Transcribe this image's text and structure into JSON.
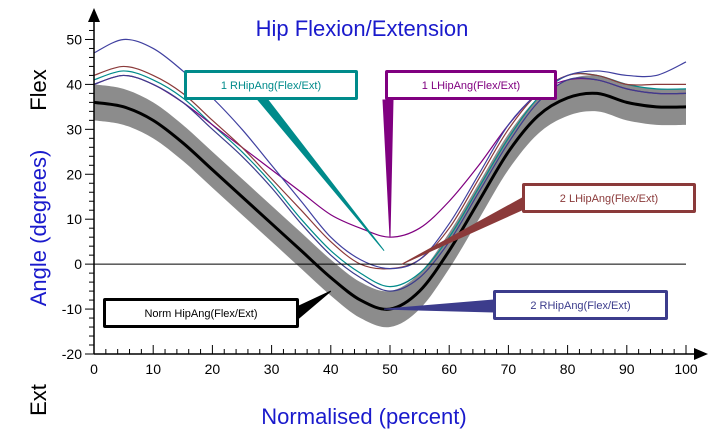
{
  "chart_data": {
    "type": "line",
    "title": "Hip Flexion/Extension",
    "xlabel": "Normalised (percent)",
    "ylabel": "Angle (degrees)",
    "ylabel_top": "Flex",
    "ylabel_bottom": "Ext",
    "xlim": [
      0,
      100
    ],
    "ylim": [
      -20,
      55
    ],
    "xticks": [
      0,
      10,
      20,
      30,
      40,
      50,
      60,
      70,
      80,
      90,
      100
    ],
    "yticks": [
      -20,
      -10,
      0,
      10,
      20,
      30,
      40,
      50
    ],
    "grid": false,
    "norm_band": {
      "name": "Norm HipAng(Flex/Ext)",
      "x": [
        0,
        5,
        10,
        15,
        20,
        25,
        30,
        35,
        40,
        45,
        50,
        55,
        60,
        65,
        70,
        75,
        80,
        85,
        90,
        95,
        100
      ],
      "mean": [
        36,
        35,
        32,
        27,
        21,
        15,
        9,
        3,
        -3,
        -8,
        -10,
        -6,
        3,
        14,
        25,
        33,
        37,
        38,
        36,
        35,
        35
      ],
      "sd": [
        4,
        4,
        4,
        4,
        4,
        4,
        4,
        4,
        4,
        4,
        4,
        4,
        4,
        4,
        4,
        4,
        4,
        4,
        4,
        4,
        4
      ]
    },
    "series": [
      {
        "name": "1 RHipAng(Flex/Ext)",
        "color": "#008b8b",
        "x": [
          0,
          5,
          10,
          15,
          20,
          25,
          30,
          35,
          40,
          45,
          50,
          55,
          60,
          65,
          70,
          75,
          80,
          85,
          90,
          95,
          100
        ],
        "values": [
          41,
          43,
          41,
          37,
          31,
          25,
          18,
          10,
          3,
          -2,
          -5,
          -2,
          6,
          17,
          28,
          37,
          42,
          42,
          40,
          39,
          39
        ]
      },
      {
        "name": "1 LHipAng(Flex/Ext)",
        "color": "#800080",
        "x": [
          0,
          5,
          10,
          15,
          20,
          25,
          30,
          35,
          40,
          45,
          50,
          55,
          60,
          65,
          70,
          75,
          80,
          85,
          90,
          95,
          100
        ],
        "values": [
          40,
          42,
          40,
          36,
          31,
          26,
          21,
          16,
          11,
          8,
          6,
          8,
          14,
          22,
          31,
          38,
          41,
          41,
          39,
          38,
          38
        ]
      },
      {
        "name": "2 LHipAng(Flex/Ext)",
        "color": "#8b3a3a",
        "x": [
          0,
          5,
          10,
          15,
          20,
          25,
          30,
          35,
          40,
          45,
          50,
          55,
          60,
          65,
          70,
          75,
          80,
          85,
          90,
          95,
          100
        ],
        "values": [
          42,
          44,
          42,
          38,
          32,
          26,
          19,
          12,
          5,
          0,
          -1,
          1,
          8,
          19,
          30,
          38,
          42,
          42,
          40,
          40,
          40
        ]
      },
      {
        "name": "2 RHipAng(Flex/Ext)",
        "color": "#3c3c8c",
        "x": [
          0,
          5,
          10,
          15,
          20,
          25,
          30,
          35,
          40,
          45,
          50,
          55,
          60,
          65,
          70,
          75,
          80,
          85,
          90,
          95,
          100
        ],
        "values": [
          40,
          42,
          40,
          36,
          30,
          24,
          17,
          9,
          2,
          -3,
          -6,
          -3,
          5,
          16,
          27,
          36,
          41,
          41,
          39,
          38,
          38
        ]
      },
      {
        "name": "",
        "color": "#4040a0",
        "x": [
          0,
          5,
          10,
          15,
          20,
          25,
          30,
          35,
          40,
          45,
          50,
          55,
          60,
          65,
          70,
          75,
          80,
          85,
          90,
          95,
          100
        ],
        "values": [
          47,
          50,
          48,
          43,
          37,
          30,
          22,
          14,
          6,
          1,
          -1,
          1,
          9,
          20,
          31,
          38,
          42,
          43,
          42,
          42,
          45
        ]
      }
    ],
    "annotations": [
      {
        "text": "1 RHipAng(Flex/Ext)",
        "color": "#008b8b",
        "target_x": 49,
        "target_y": 3
      },
      {
        "text": "1 LHipAng(Flex/Ext)",
        "color": "#800080",
        "target_x": 50,
        "target_y": 6
      },
      {
        "text": "2 LHipAng(Flex/Ext)",
        "color": "#8b3a3a",
        "target_x": 52,
        "target_y": 0
      },
      {
        "text": "Norm HipAng(Flex/Ext)",
        "color": "#000000",
        "target_x": 40,
        "target_y": -6
      },
      {
        "text": "2 RHipAng(Flex/Ext)",
        "color": "#3c3c8c",
        "target_x": 49,
        "target_y": -10
      }
    ]
  }
}
